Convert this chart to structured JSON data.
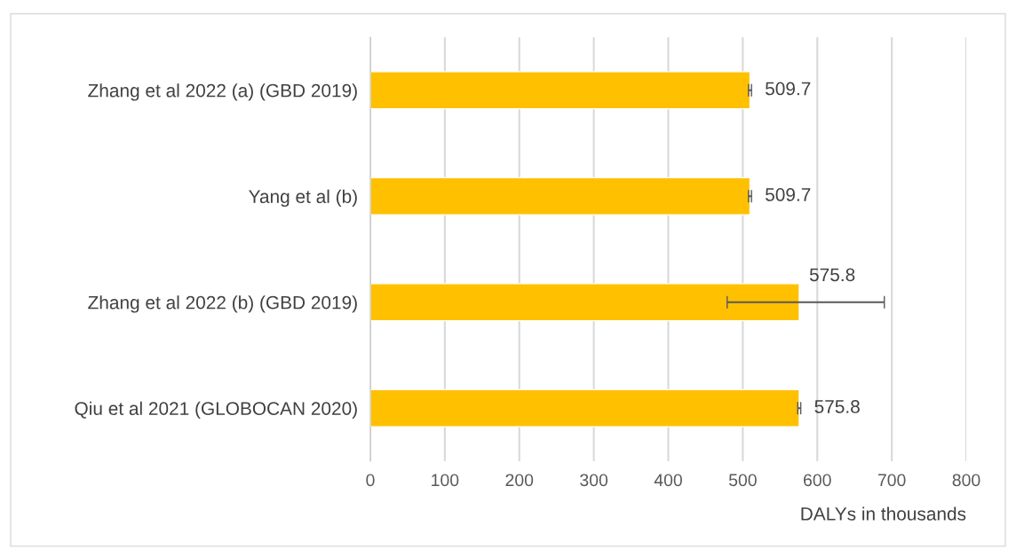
{
  "chart_data": {
    "type": "bar",
    "orientation": "horizontal",
    "categories": [
      "Zhang et al 2022 (a) (GBD 2019)",
      "Yang et al (b)",
      "Zhang et al 2022 (b) (GBD 2019)",
      "Qiu et al 2021 (GLOBOCAN 2020)"
    ],
    "values": [
      509.7,
      509.7,
      575.8,
      575.8
    ],
    "errors": [
      2,
      2,
      [
        479,
        690
      ],
      2
    ],
    "color": "#ffc000",
    "data_labels": true,
    "xlabel": "DALYs in thousands",
    "xlim": [
      0,
      800
    ],
    "xticks": [
      0,
      100,
      200,
      300,
      400,
      500,
      600,
      700,
      800
    ],
    "grid": "x",
    "legend": false
  }
}
